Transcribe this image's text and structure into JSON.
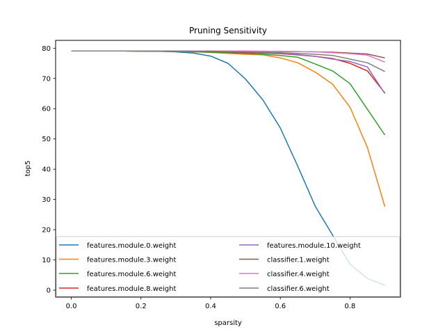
{
  "chart_data": {
    "type": "line",
    "title": "Pruning Sensitivity",
    "xlabel": "sparsity",
    "ylabel": "top5",
    "xlim": [
      -0.045,
      0.945
    ],
    "ylim": [
      -2.3,
      82.6
    ],
    "xticks": [
      0.0,
      0.2,
      0.4,
      0.6,
      0.8
    ],
    "xtick_labels": [
      "0.0",
      "0.2",
      "0.4",
      "0.6",
      "0.8"
    ],
    "yticks": [
      0,
      10,
      20,
      30,
      40,
      50,
      60,
      70,
      80
    ],
    "ytick_labels": [
      "0",
      "10",
      "20",
      "30",
      "40",
      "50",
      "60",
      "70",
      "80"
    ],
    "grid": false,
    "legend_position": "lower center, 2 columns",
    "x": [
      0.0,
      0.05,
      0.1,
      0.15,
      0.2,
      0.25,
      0.3,
      0.35,
      0.4,
      0.45,
      0.5,
      0.55,
      0.6,
      0.65,
      0.7,
      0.75,
      0.8,
      0.85,
      0.9
    ],
    "series": [
      {
        "name": "features.module.0.weight",
        "color": "#1f77b4",
        "values": [
          79.1,
          79.1,
          79.1,
          79.1,
          79.0,
          79.0,
          78.8,
          78.4,
          77.4,
          75.0,
          69.8,
          62.9,
          53.6,
          41.0,
          27.8,
          18.2,
          8.6,
          3.9,
          1.6
        ]
      },
      {
        "name": "features.module.3.weight",
        "color": "#ff7f0e",
        "values": [
          79.1,
          79.1,
          79.1,
          79.1,
          79.0,
          79.0,
          78.9,
          78.8,
          78.6,
          78.3,
          78.0,
          77.8,
          76.8,
          75.2,
          72.1,
          68.1,
          60.5,
          47.2,
          27.6
        ]
      },
      {
        "name": "features.module.6.weight",
        "color": "#2ca02c",
        "values": [
          79.1,
          79.1,
          79.1,
          79.1,
          79.0,
          79.0,
          78.9,
          78.8,
          78.7,
          78.5,
          78.3,
          78.0,
          77.6,
          77.0,
          74.8,
          72.5,
          68.3,
          59.8,
          51.3
        ]
      },
      {
        "name": "features.module.8.weight",
        "color": "#d62728",
        "values": [
          79.1,
          79.1,
          79.1,
          79.1,
          79.1,
          79.0,
          79.0,
          79.0,
          78.9,
          78.8,
          78.6,
          78.4,
          78.2,
          77.8,
          77.3,
          76.6,
          75.0,
          72.5,
          65.2
        ]
      },
      {
        "name": "features.module.10.weight",
        "color": "#9467bd",
        "values": [
          79.1,
          79.1,
          79.1,
          79.1,
          79.1,
          79.1,
          79.0,
          79.0,
          79.0,
          78.9,
          78.8,
          78.6,
          78.3,
          77.9,
          77.3,
          76.4,
          75.6,
          73.8,
          65.0
        ]
      },
      {
        "name": "classifier.1.weight",
        "color": "#8c564b",
        "values": [
          79.1,
          79.1,
          79.1,
          79.1,
          79.1,
          79.1,
          79.1,
          79.1,
          79.1,
          79.1,
          79.0,
          79.0,
          78.9,
          78.9,
          78.8,
          78.7,
          78.4,
          78.1,
          76.8
        ]
      },
      {
        "name": "classifier.4.weight",
        "color": "#e377c2",
        "values": [
          79.1,
          79.1,
          79.1,
          79.1,
          79.1,
          79.1,
          79.1,
          79.1,
          79.1,
          79.1,
          79.1,
          79.0,
          79.0,
          78.9,
          78.8,
          78.5,
          78.2,
          77.7,
          75.4
        ]
      },
      {
        "name": "classifier.6.weight",
        "color": "#7f7f7f",
        "values": [
          79.1,
          79.1,
          79.1,
          79.1,
          79.1,
          79.1,
          79.1,
          79.0,
          79.0,
          78.9,
          78.8,
          78.7,
          78.5,
          78.3,
          78.0,
          77.6,
          76.4,
          75.2,
          72.3
        ]
      }
    ]
  }
}
